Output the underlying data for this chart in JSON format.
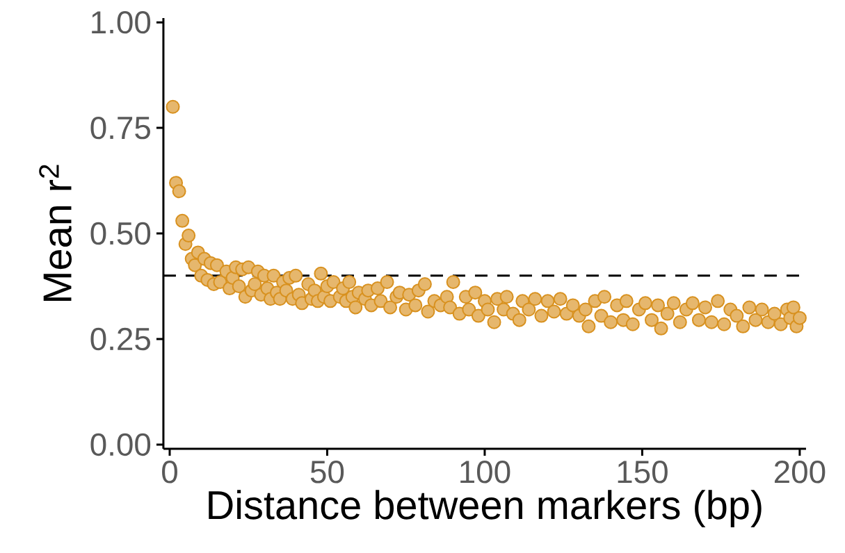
{
  "chart_data": {
    "type": "scatter",
    "xlabel": "Distance between markers (bp)",
    "ylabel": "Mean r$^{2}$",
    "x": [
      1,
      2,
      3,
      4,
      5,
      6,
      7,
      8,
      9,
      10,
      11,
      12,
      13,
      14,
      15,
      16,
      18,
      19,
      20,
      21,
      22,
      23,
      24,
      25,
      26,
      27,
      28,
      29,
      30,
      31,
      32,
      33,
      34,
      35,
      36,
      37,
      38,
      39,
      40,
      41,
      42,
      44,
      45,
      46,
      47,
      48,
      49,
      50,
      51,
      52,
      54,
      55,
      56,
      57,
      58,
      59,
      60,
      62,
      63,
      64,
      66,
      67,
      69,
      70,
      72,
      73,
      75,
      76,
      78,
      79,
      81,
      82,
      84,
      86,
      88,
      89,
      90,
      92,
      94,
      95,
      97,
      98,
      100,
      101,
      103,
      104,
      106,
      107,
      109,
      111,
      112,
      114,
      116,
      118,
      120,
      122,
      124,
      126,
      128,
      130,
      132,
      133,
      135,
      137,
      138,
      140,
      142,
      144,
      145,
      147,
      149,
      151,
      153,
      155,
      156,
      158,
      160,
      162,
      164,
      166,
      168,
      170,
      172,
      174,
      176,
      178,
      180,
      182,
      184,
      186,
      188,
      190,
      192,
      194,
      196,
      197,
      198,
      199,
      200
    ],
    "values": [
      0.8,
      0.62,
      0.6,
      0.53,
      0.475,
      0.495,
      0.44,
      0.425,
      0.455,
      0.4,
      0.44,
      0.39,
      0.43,
      0.38,
      0.425,
      0.385,
      0.41,
      0.37,
      0.395,
      0.42,
      0.375,
      0.415,
      0.35,
      0.42,
      0.365,
      0.38,
      0.41,
      0.355,
      0.4,
      0.37,
      0.345,
      0.4,
      0.36,
      0.345,
      0.385,
      0.365,
      0.395,
      0.345,
      0.4,
      0.355,
      0.335,
      0.38,
      0.345,
      0.365,
      0.34,
      0.405,
      0.35,
      0.375,
      0.34,
      0.385,
      0.35,
      0.37,
      0.34,
      0.385,
      0.35,
      0.325,
      0.36,
      0.345,
      0.365,
      0.33,
      0.37,
      0.34,
      0.385,
      0.325,
      0.35,
      0.36,
      0.32,
      0.355,
      0.33,
      0.365,
      0.38,
      0.315,
      0.34,
      0.33,
      0.35,
      0.325,
      0.385,
      0.31,
      0.35,
      0.32,
      0.36,
      0.305,
      0.34,
      0.32,
      0.29,
      0.345,
      0.32,
      0.35,
      0.31,
      0.295,
      0.34,
      0.32,
      0.345,
      0.305,
      0.34,
      0.315,
      0.345,
      0.31,
      0.33,
      0.305,
      0.32,
      0.28,
      0.34,
      0.305,
      0.35,
      0.29,
      0.33,
      0.295,
      0.34,
      0.285,
      0.32,
      0.335,
      0.295,
      0.33,
      0.275,
      0.31,
      0.335,
      0.29,
      0.32,
      0.335,
      0.295,
      0.325,
      0.29,
      0.34,
      0.285,
      0.32,
      0.305,
      0.28,
      0.325,
      0.295,
      0.32,
      0.29,
      0.31,
      0.285,
      0.32,
      0.3,
      0.325,
      0.28,
      0.3
    ],
    "color": "#d8911f",
    "grid": false,
    "xlim": [
      -2,
      202
    ],
    "ylim": [
      -0.01,
      1.01
    ],
    "xticks": [
      0,
      50,
      100,
      150,
      200
    ],
    "yticks": [
      {
        "value": 0,
        "label": "0.00"
      },
      {
        "value": 0.25,
        "label": "0.25"
      },
      {
        "value": 0.5,
        "label": "0.50"
      },
      {
        "value": 0.75,
        "label": "0.75"
      },
      {
        "value": 1,
        "label": "1.00"
      }
    ],
    "ref_lines": [
      {
        "axis": "y",
        "value": 0.4,
        "color": "#000000",
        "line_style": "dashed"
      }
    ]
  }
}
